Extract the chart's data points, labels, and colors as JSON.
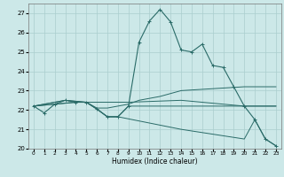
{
  "xlabel": "Humidex (Indice chaleur)",
  "xlim": [
    -0.5,
    23.5
  ],
  "ylim": [
    20,
    27.5
  ],
  "yticks": [
    20,
    21,
    22,
    23,
    24,
    25,
    26,
    27
  ],
  "xticks": [
    0,
    1,
    2,
    3,
    4,
    5,
    6,
    7,
    8,
    9,
    10,
    11,
    12,
    13,
    14,
    15,
    16,
    17,
    18,
    19,
    20,
    21,
    22,
    23
  ],
  "bg_color": "#cce8e8",
  "grid_color": "#aacece",
  "line_color": "#2a6b68",
  "lines": [
    {
      "x": [
        0,
        1,
        2,
        3,
        4,
        5,
        6,
        7,
        8,
        9,
        10,
        11,
        12,
        13,
        14,
        15,
        16,
        17,
        18,
        19,
        20,
        21,
        22,
        23
      ],
      "y": [
        22.2,
        21.85,
        22.3,
        22.5,
        22.4,
        22.4,
        22.05,
        21.65,
        21.65,
        22.2,
        25.5,
        26.6,
        27.2,
        26.55,
        25.1,
        25.0,
        25.4,
        24.3,
        24.2,
        23.2,
        22.2,
        21.5,
        20.5,
        20.15
      ],
      "marker": true
    },
    {
      "x": [
        0,
        3,
        5,
        6,
        7,
        8,
        9,
        10,
        11,
        12,
        14,
        20,
        23
      ],
      "y": [
        22.2,
        22.5,
        22.4,
        22.1,
        22.1,
        22.2,
        22.3,
        22.5,
        22.6,
        22.7,
        23.0,
        23.2,
        23.2
      ],
      "marker": false
    },
    {
      "x": [
        0,
        3,
        5,
        6,
        7,
        8,
        9,
        14,
        20,
        23
      ],
      "y": [
        22.2,
        22.5,
        22.4,
        22.05,
        21.65,
        21.65,
        22.2,
        22.2,
        22.2,
        22.2
      ],
      "marker": false
    },
    {
      "x": [
        0,
        4,
        5,
        6,
        7,
        8,
        14,
        20,
        21,
        22,
        23
      ],
      "y": [
        22.2,
        22.4,
        22.4,
        22.05,
        21.65,
        21.65,
        21.0,
        20.5,
        21.5,
        20.5,
        20.15
      ],
      "marker": false
    },
    {
      "x": [
        0,
        4,
        9,
        14,
        20,
        23
      ],
      "y": [
        22.2,
        22.4,
        22.4,
        22.5,
        22.2,
        22.2
      ],
      "marker": false
    }
  ]
}
